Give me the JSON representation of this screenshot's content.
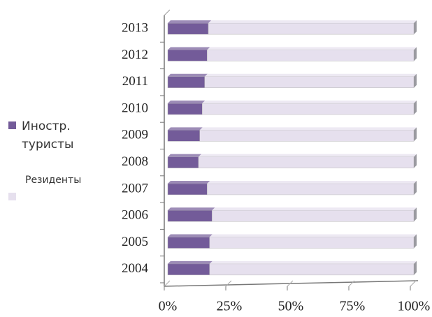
{
  "chart_data": {
    "type": "stacked-bar-horizontal",
    "categories": [
      "2004",
      "2005",
      "2006",
      "2007",
      "2008",
      "2009",
      "2010",
      "2011",
      "2012",
      "2013"
    ],
    "series": [
      {
        "name": "Иностр. туристы",
        "color": "#735b99",
        "values": [
          17,
          17,
          18,
          16,
          12.5,
          13,
          14,
          15,
          16,
          16.5
        ]
      },
      {
        "name": "Резиденты",
        "color": "#e6e0ee",
        "values": [
          83,
          83,
          82,
          84,
          87.5,
          87,
          86,
          85,
          84,
          83.5
        ]
      }
    ],
    "xlim": [
      0,
      100
    ],
    "xticks": [
      {
        "value": 0,
        "label": "0%"
      },
      {
        "value": 25,
        "label": "25%"
      },
      {
        "value": 50,
        "label": "50%"
      },
      {
        "value": 75,
        "label": "75%"
      },
      {
        "value": 100,
        "label": "100%"
      }
    ],
    "grid": true,
    "legend": "left"
  }
}
